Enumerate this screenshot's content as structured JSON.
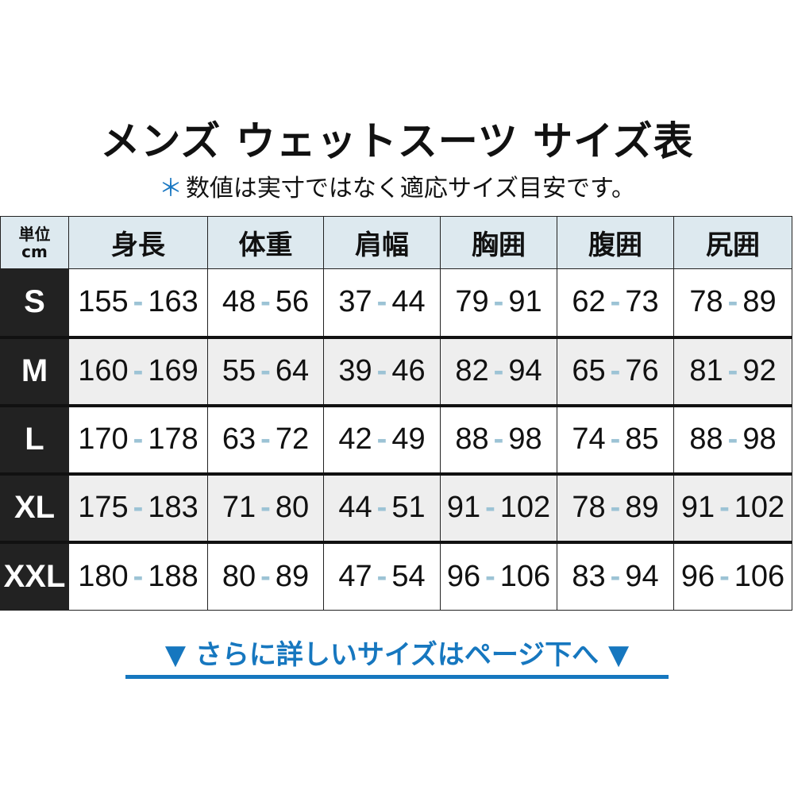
{
  "title": "メンズ ウェットスーツ サイズ表",
  "note": {
    "mark": "＊",
    "text": "数値は実寸ではなく適応サイズ目安です。"
  },
  "table": {
    "unit_label_1": "単位",
    "unit_label_2": "cm",
    "headers": [
      "身長",
      "体重",
      "肩幅",
      "胸囲",
      "腹囲",
      "尻囲"
    ],
    "range_separator": "-",
    "rows": [
      {
        "size": "S",
        "values": [
          [
            "155",
            "163"
          ],
          [
            "48",
            "56"
          ],
          [
            "37",
            "44"
          ],
          [
            "79",
            "91"
          ],
          [
            "62",
            "73"
          ],
          [
            "78",
            "89"
          ]
        ]
      },
      {
        "size": "M",
        "values": [
          [
            "160",
            "169"
          ],
          [
            "55",
            "64"
          ],
          [
            "39",
            "46"
          ],
          [
            "82",
            "94"
          ],
          [
            "65",
            "76"
          ],
          [
            "81",
            "92"
          ]
        ]
      },
      {
        "size": "L",
        "values": [
          [
            "170",
            "178"
          ],
          [
            "63",
            "72"
          ],
          [
            "42",
            "49"
          ],
          [
            "88",
            "98"
          ],
          [
            "74",
            "85"
          ],
          [
            "88",
            "98"
          ]
        ]
      },
      {
        "size": "XL",
        "values": [
          [
            "175",
            "183"
          ],
          [
            "71",
            "80"
          ],
          [
            "44",
            "51"
          ],
          [
            "91",
            "102"
          ],
          [
            "78",
            "89"
          ],
          [
            "91",
            "102"
          ]
        ]
      },
      {
        "size": "XXL",
        "values": [
          [
            "180",
            "188"
          ],
          [
            "80",
            "89"
          ],
          [
            "47",
            "54"
          ],
          [
            "96",
            "106"
          ],
          [
            "83",
            "94"
          ],
          [
            "96",
            "106"
          ]
        ]
      }
    ]
  },
  "more_link": {
    "arrow": "▼",
    "text": "さらに詳しいサイズはページ下へ"
  },
  "colors": {
    "accent": "#1677bf",
    "header_bg": "#dde9ef",
    "size_bg": "#222222",
    "dash": "#9cc3d5"
  }
}
